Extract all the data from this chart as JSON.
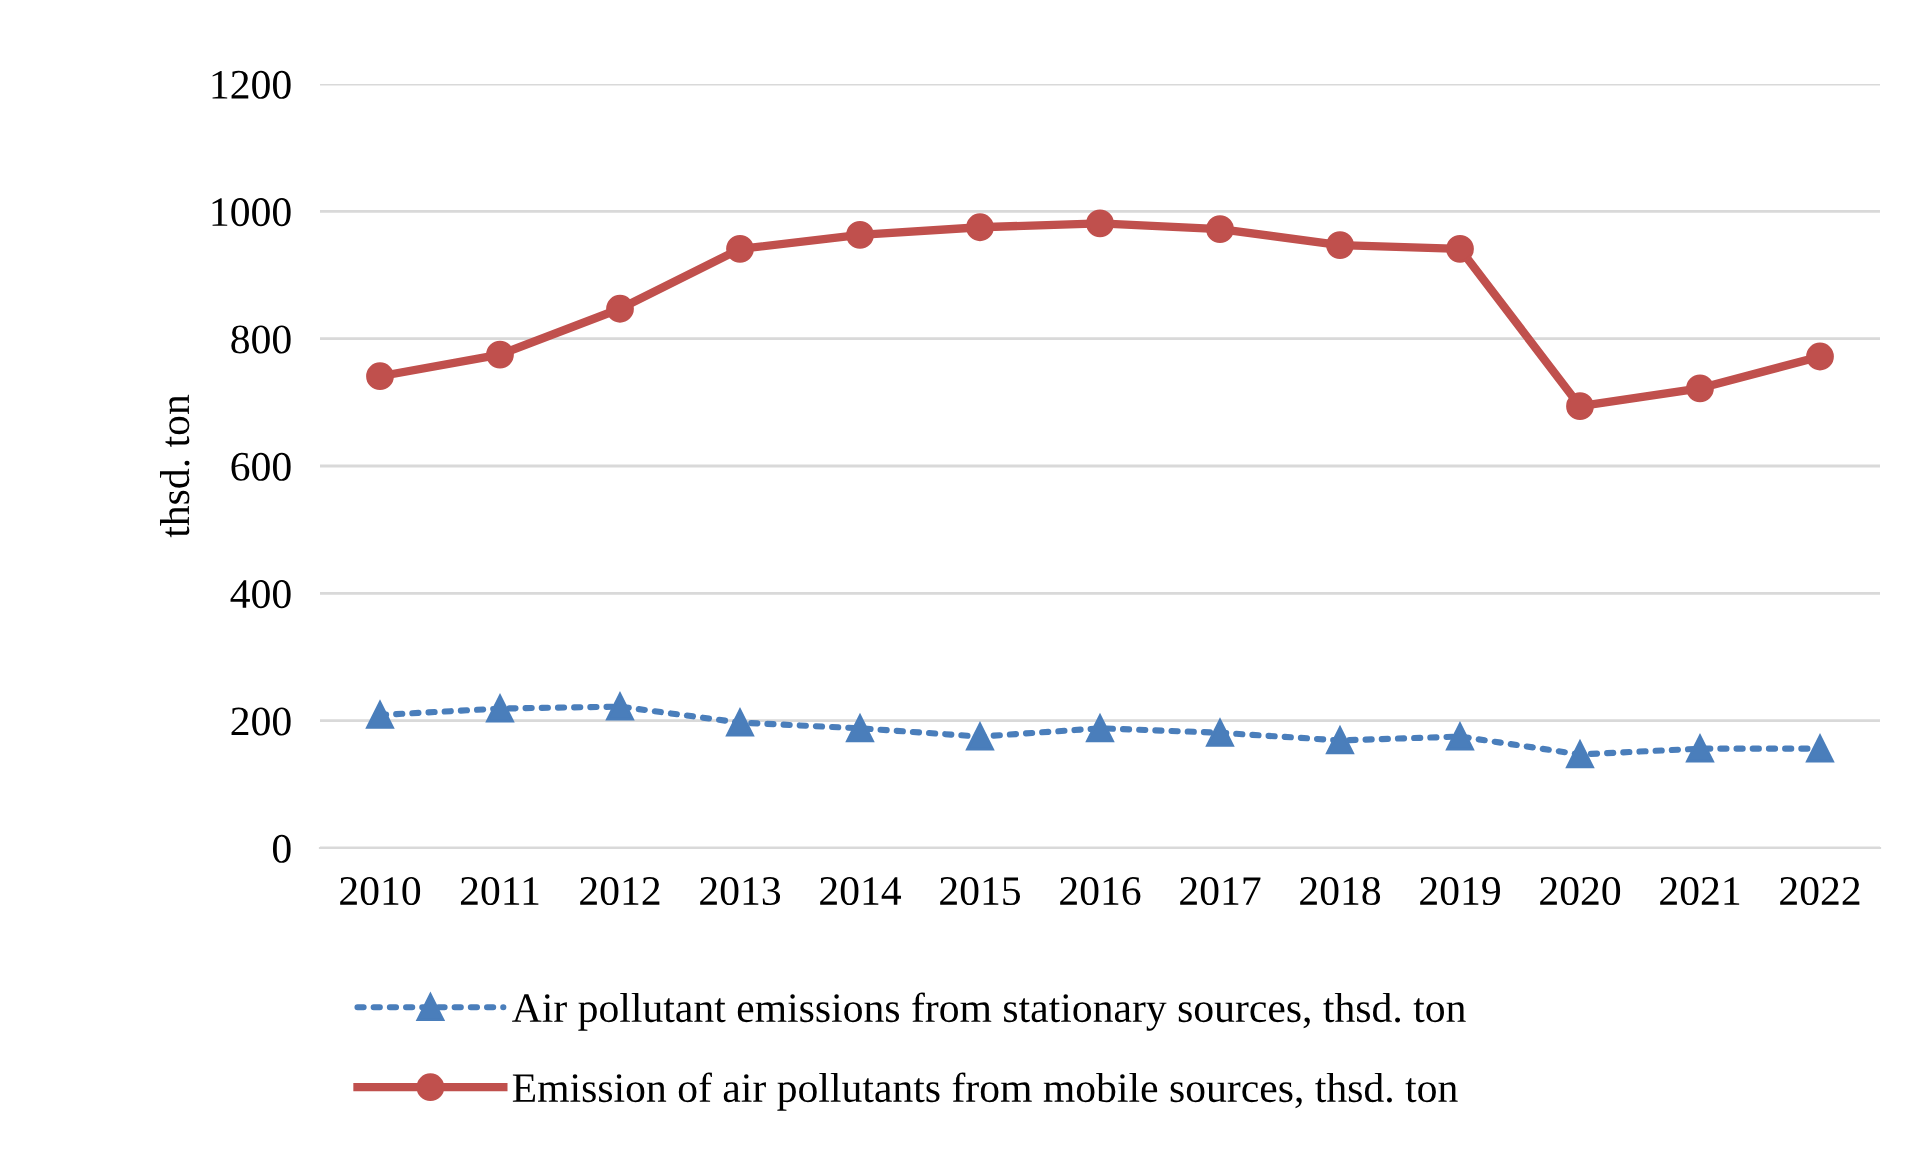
{
  "chart_data": {
    "type": "line",
    "ylabel": "thsd. ton",
    "categories": [
      "2010",
      "2011",
      "2012",
      "2013",
      "2014",
      "2015",
      "2016",
      "2017",
      "2018",
      "2019",
      "2020",
      "2021",
      "2022"
    ],
    "series": [
      {
        "name": "Air pollutant emissions from stationary sources, thsd. ton",
        "color": "#4a7ebb",
        "marker": "triangle",
        "line_style": "dotted",
        "values": [
          209,
          219,
          222,
          197,
          188,
          175,
          188,
          181,
          169,
          175,
          147,
          156,
          156
        ]
      },
      {
        "name": "Emission of air pollutants from mobile sources, thsd. ton",
        "color": "#c0504d",
        "marker": "circle",
        "line_style": "solid",
        "values": [
          741,
          775,
          847,
          941,
          963,
          975,
          981,
          972,
          947,
          941,
          694,
          722,
          772
        ]
      }
    ],
    "ylim": [
      0,
      1200
    ],
    "yticks": [
      0,
      200,
      400,
      600,
      800,
      1000,
      1200
    ],
    "grid": "y",
    "legend": "bottom"
  }
}
